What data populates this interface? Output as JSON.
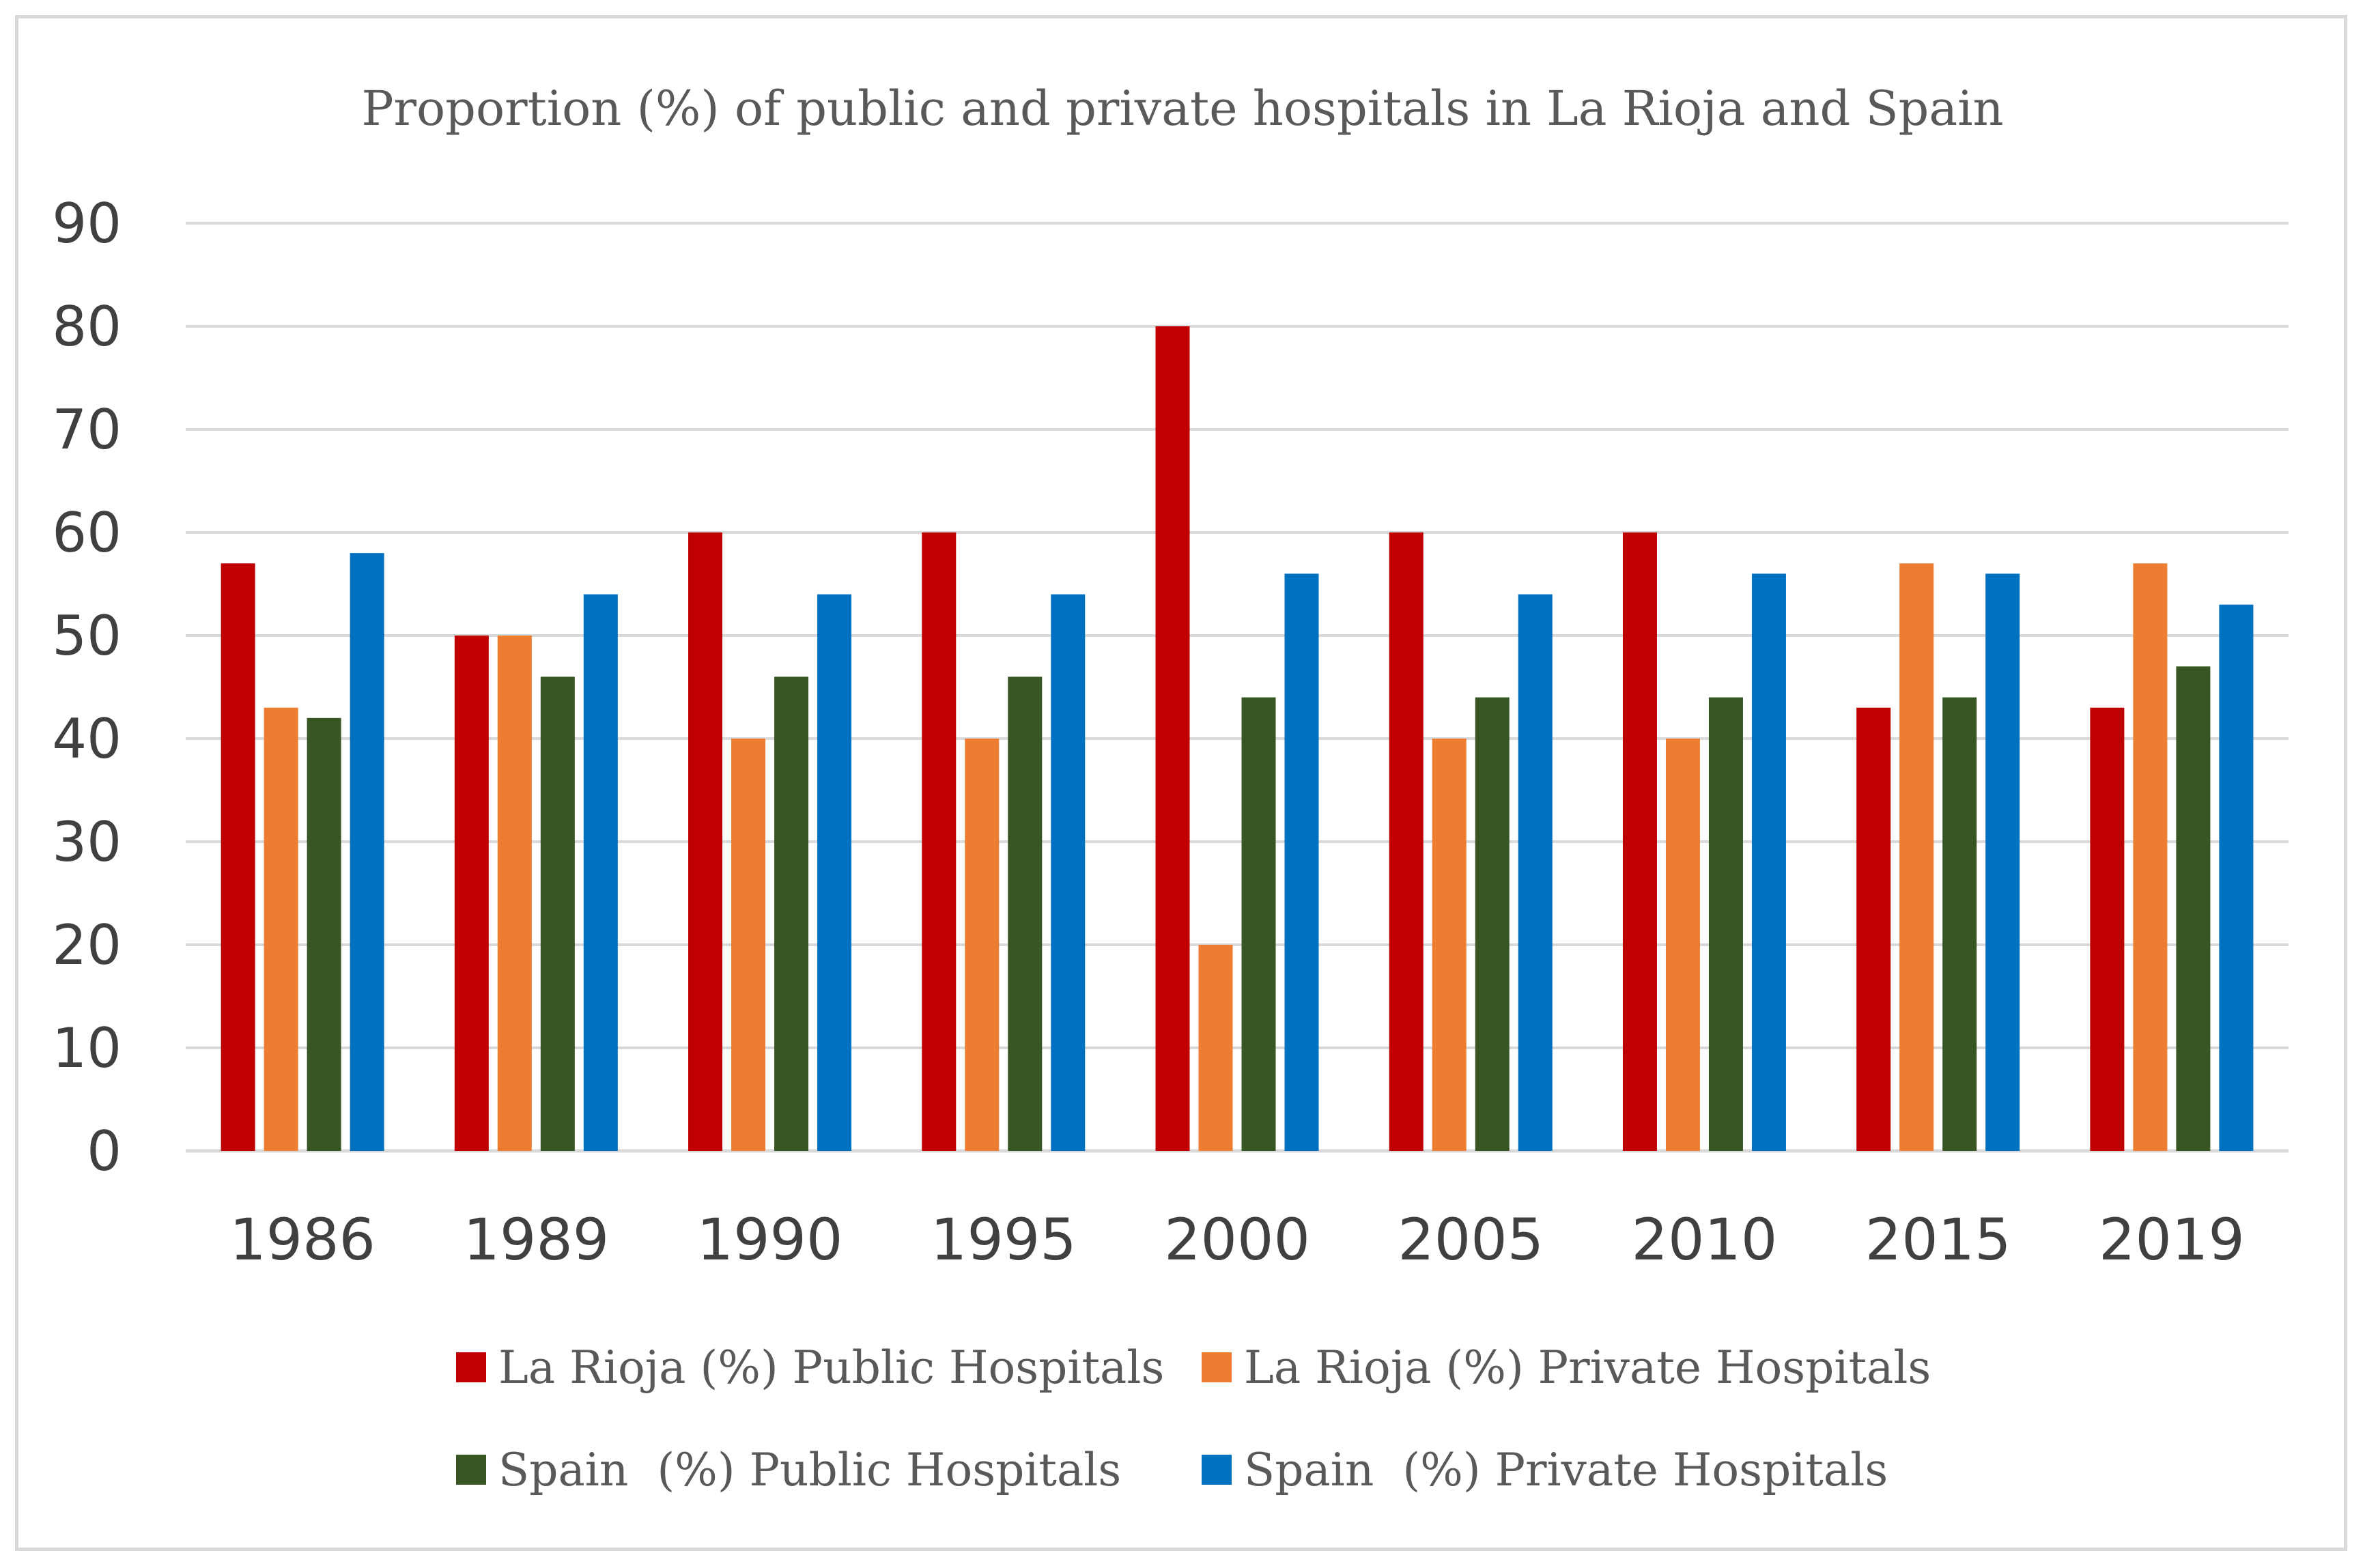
{
  "chart_data": {
    "type": "bar",
    "title": "Proportion (%) of public and private hospitals in La Rioja and Spain",
    "xlabel": "",
    "ylabel": "",
    "ylim": [
      0,
      90
    ],
    "yticks": [
      0,
      10,
      20,
      30,
      40,
      50,
      60,
      70,
      80,
      90
    ],
    "grid": true,
    "legend_position": "bottom",
    "categories": [
      "1986",
      "1989",
      "1990",
      "1995",
      "2000",
      "2005",
      "2010",
      "2015",
      "2019"
    ],
    "series": [
      {
        "name": "La Rioja (%) Public Hospitals",
        "color": "#c00000",
        "values": [
          57,
          50,
          60,
          60,
          80,
          60,
          60,
          43,
          43
        ]
      },
      {
        "name": "La Rioja (%) Private Hospitals",
        "color": "#ed7d31",
        "values": [
          43,
          50,
          40,
          40,
          20,
          40,
          40,
          57,
          57
        ]
      },
      {
        "name": "Spain  (%) Public Hospitals",
        "color": "#375623",
        "values": [
          42,
          46,
          46,
          46,
          44,
          44,
          44,
          44,
          47
        ]
      },
      {
        "name": "Spain  (%) Private Hospitals",
        "color": "#0070c0",
        "values": [
          58,
          54,
          54,
          54,
          56,
          54,
          56,
          56,
          53
        ]
      }
    ]
  }
}
